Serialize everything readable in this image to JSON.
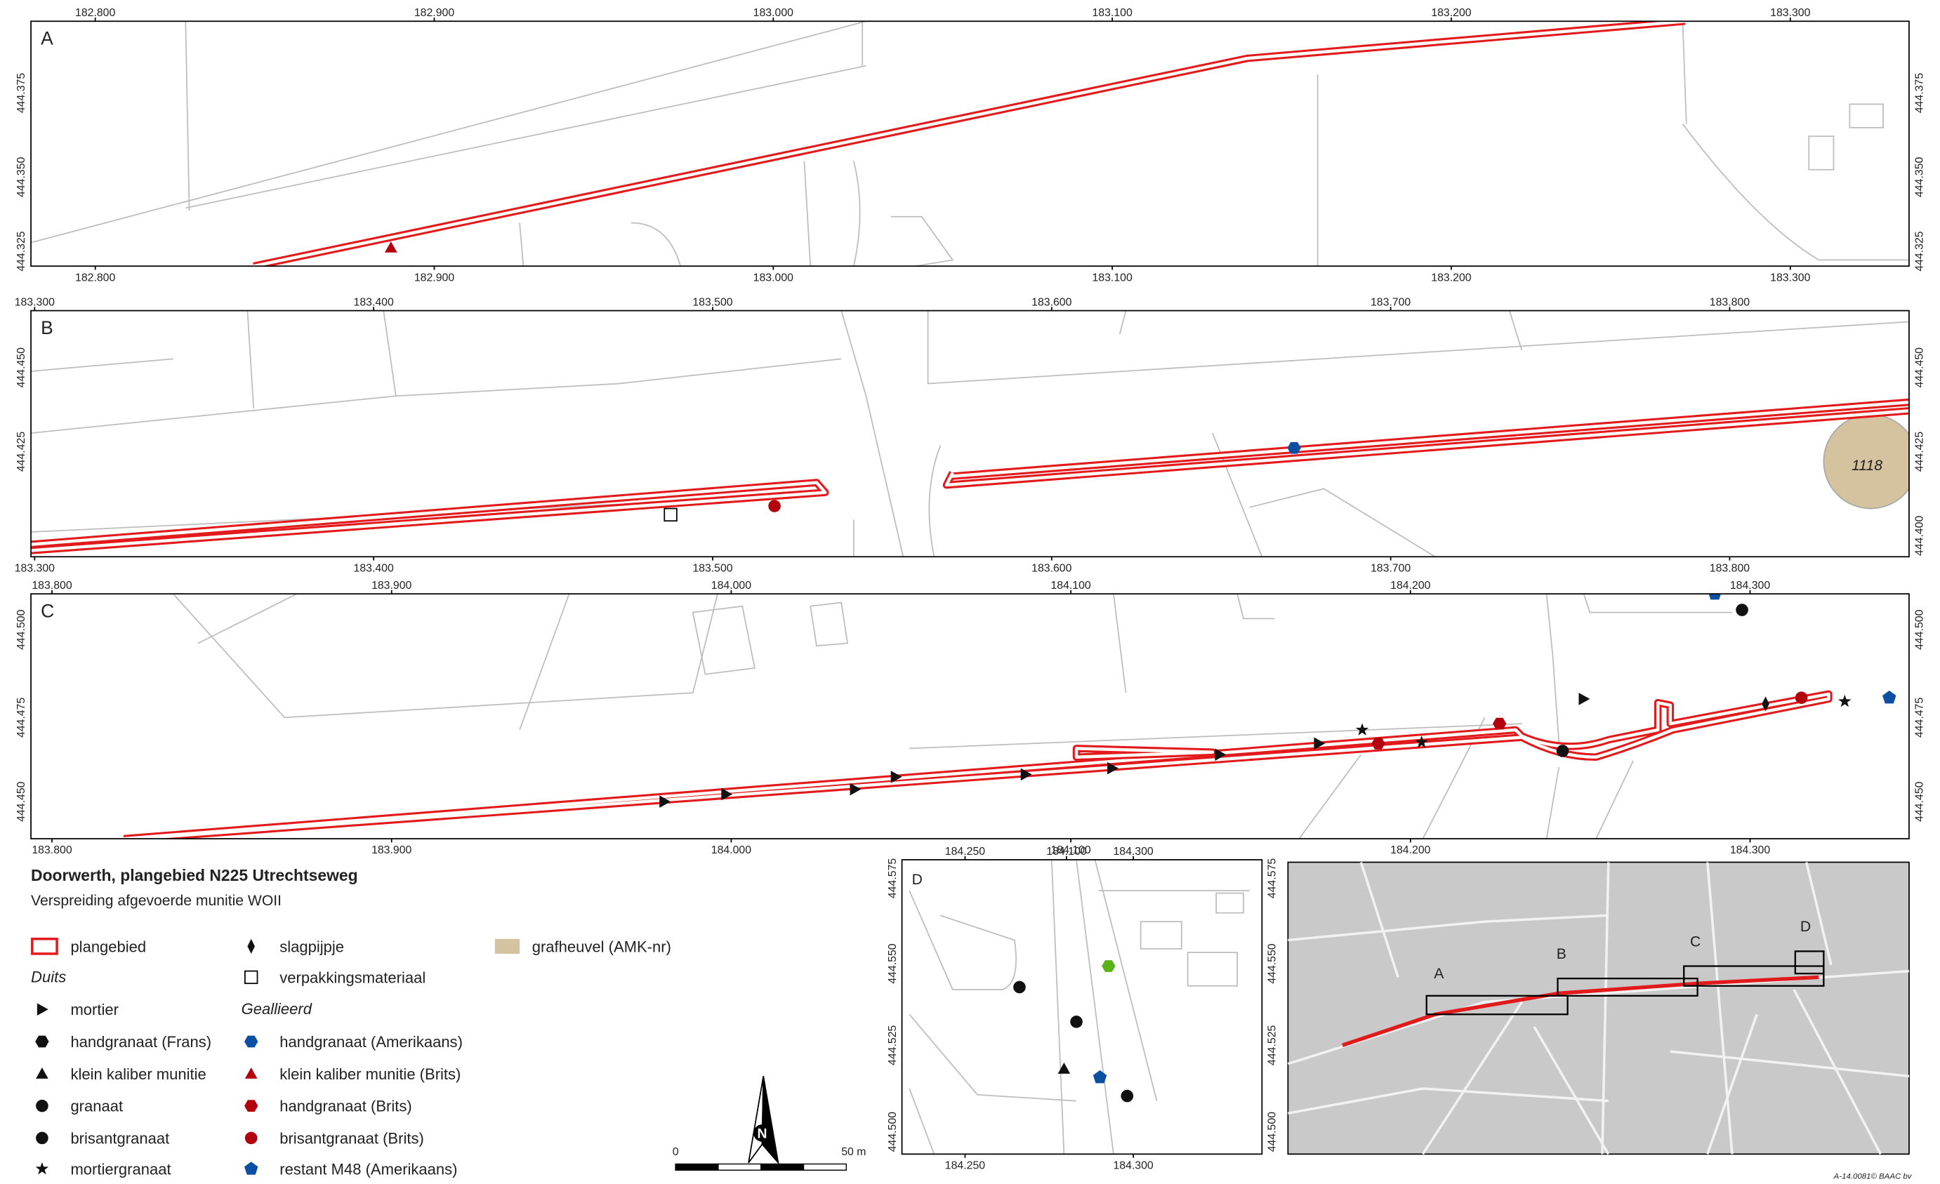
{
  "panels": [
    {
      "label": "A",
      "top_ticks": [
        "182.800",
        "182.900",
        "183.000",
        "183.100",
        "183.200",
        "183.300"
      ],
      "bottom_ticks": [
        "182.800",
        "182.900",
        "183.000",
        "183.100",
        "183.200",
        "183.300"
      ],
      "left_ticks": [
        "444.375",
        "444.350",
        "444.325"
      ],
      "right_ticks": [
        "444.375",
        "444.350",
        "444.325"
      ]
    },
    {
      "label": "B",
      "top_ticks": [
        "183.300",
        "183.400",
        "183.500",
        "183.600",
        "183.700",
        "183.800"
      ],
      "bottom_ticks": [
        "183.300",
        "183.400",
        "183.500",
        "183.600",
        "183.700",
        "183.800"
      ],
      "left_ticks": [
        "444.450",
        "444.425"
      ],
      "right_ticks": [
        "444.450",
        "444.425",
        "444.400"
      ],
      "annotation": "1118"
    },
    {
      "label": "C",
      "top_ticks": [
        "183.800",
        "183.900",
        "184.000",
        "184.100",
        "184.200",
        "184.300"
      ],
      "bottom_ticks": [
        "183.800",
        "183.900",
        "184.000",
        "184.100",
        "184.200",
        "184.300"
      ],
      "left_ticks": [
        "444.500",
        "444.475",
        "444.450"
      ],
      "right_ticks": [
        "444.500",
        "444.475",
        "444.450"
      ]
    },
    {
      "label": "D",
      "top_ticks": [
        "184.250",
        "184.100",
        "184.300"
      ],
      "bottom_ticks": [
        "184.250",
        "184.300"
      ],
      "left_ticks": [
        "444.575",
        "444.550",
        "444.525",
        "444.500"
      ],
      "right_ticks": [
        "444.575",
        "444.550",
        "444.525",
        "444.500"
      ]
    }
  ],
  "title": "Doorwerth, plangebied N225 Utrechtseweg",
  "subtitle": "Verspreiding afgevoerde munitie WOII",
  "legend_items": [
    "plangebied",
    "Duits",
    "mortier",
    "handgranaat (Frans)",
    "klein kaliber munitie",
    "granaat",
    "brisantgranaat",
    "mortiergranaat",
    "slagpijpje",
    "verpakkingsmateriaal",
    "Geallieerd",
    "handgranaat (Amerikaans)",
    "klein kaliber munitie (Brits)",
    "handgranaat (Brits)",
    "brisantgranaat (Brits)",
    "restant M48 (Amerikaans)",
    "grafheuvel (AMK-nr)"
  ],
  "scale_bar": {
    "start": "0",
    "end": "50 m"
  },
  "north": "N",
  "overview_labels": [
    "A",
    "B",
    "C",
    "D"
  ],
  "credit": "A-14.0081© BAAC bv"
}
